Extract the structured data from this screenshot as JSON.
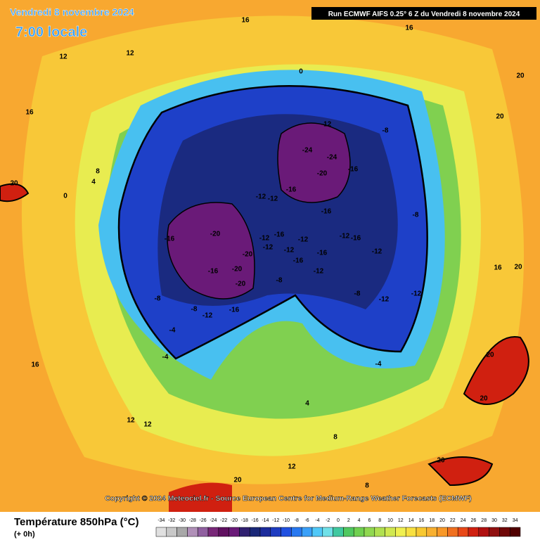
{
  "header": {
    "title": "Vendredi 8 novembre 2024",
    "time": "7:00 locale",
    "run": "Run ECMWF AIFS 0.25° 6 Z du Vendredi 8 novembre 2024"
  },
  "copyright": "Copyright © 2024 Meteociel.fr - Source European Centre for Medium-Range Weather Forecasts (ECMWF)",
  "legend": {
    "title": "Température 850hPa (°C)",
    "lead": "(+ 0h)",
    "ticks": [
      -34,
      -32,
      -30,
      -28,
      -26,
      -24,
      -22,
      -20,
      -18,
      -16,
      -14,
      -12,
      -10,
      -8,
      -6,
      -4,
      -2,
      0,
      2,
      4,
      6,
      8,
      10,
      12,
      14,
      16,
      18,
      20,
      22,
      24,
      26,
      28,
      30,
      32,
      34
    ],
    "colors": [
      "#e0e0e0",
      "#c8c8c8",
      "#a8a8a8",
      "#b090b8",
      "#9060a0",
      "#782878",
      "#601060",
      "#6a1a78",
      "#302070",
      "#1a2878",
      "#1c2c9c",
      "#1e3cc0",
      "#2050e0",
      "#2878f0",
      "#3aa0f8",
      "#50c8f8",
      "#70e0e8",
      "#40c8a0",
      "#50c860",
      "#70d050",
      "#90d850",
      "#b0e050",
      "#d0e850",
      "#f0f050",
      "#f8e040",
      "#f8c830",
      "#f8b030",
      "#f89828",
      "#f07020",
      "#e84818",
      "#d02010",
      "#b01010",
      "#901010",
      "#700808",
      "#500000"
    ]
  },
  "contour_labels": [
    -24,
    -24,
    -20,
    -16,
    -12,
    -16,
    -8,
    -16,
    -12,
    -12,
    -20,
    -16,
    -12,
    -16,
    -12,
    -12,
    -16,
    -12,
    -12,
    -16,
    -12,
    -20,
    -16,
    -20,
    -16,
    -12,
    -20,
    -8,
    -8,
    -8,
    -16,
    -12,
    -8,
    -12,
    -12,
    -8,
    -4,
    -4,
    -4,
    0,
    0,
    4,
    8,
    12,
    12,
    16,
    16,
    16,
    20,
    20,
    20,
    20,
    20,
    20,
    20,
    20,
    16,
    12,
    12,
    4,
    8,
    12,
    8,
    16
  ]
}
